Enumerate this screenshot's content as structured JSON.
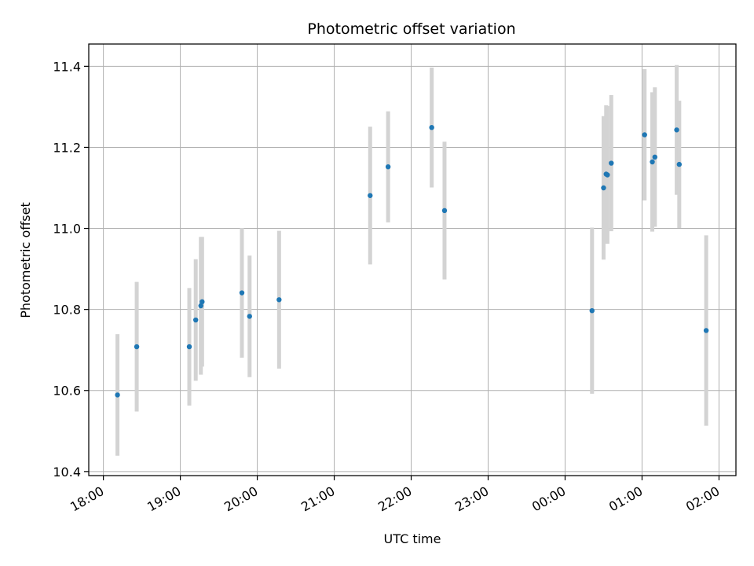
{
  "chart_data": {
    "type": "scatter",
    "title": "Photometric offset variation",
    "xlabel": "UTC time",
    "ylabel": "Photometric offset",
    "x_tick_labels": [
      "18:00",
      "19:00",
      "20:00",
      "21:00",
      "22:00",
      "23:00",
      "00:00",
      "01:00",
      "02:00"
    ],
    "x_tick_hours": [
      0,
      1,
      2,
      3,
      4,
      5,
      6,
      7,
      8
    ],
    "x_start_time": "18:00",
    "xlim_hours": [
      -0.19,
      8.22
    ],
    "y_ticks": [
      10.4,
      10.6,
      10.8,
      11.0,
      11.2,
      11.4
    ],
    "y_tick_labels": [
      "10.4",
      "10.6",
      "10.8",
      "11.0",
      "11.2",
      "11.4"
    ],
    "ylim": [
      10.39,
      11.455
    ],
    "grid": true,
    "point_color": "#1f77b4",
    "errorbar_color": "#d3d3d3",
    "points": [
      {
        "time": "18:11",
        "y": 10.589,
        "err": 0.15
      },
      {
        "time": "18:26",
        "y": 10.708,
        "err": 0.16
      },
      {
        "time": "19:07",
        "y": 10.708,
        "err": 0.145
      },
      {
        "time": "19:12",
        "y": 10.774,
        "err": 0.15
      },
      {
        "time": "19:16",
        "y": 10.809,
        "err": 0.17
      },
      {
        "time": "19:17",
        "y": 10.819,
        "err": 0.16
      },
      {
        "time": "19:48",
        "y": 10.841,
        "err": 0.16
      },
      {
        "time": "19:54",
        "y": 10.783,
        "err": 0.15
      },
      {
        "time": "20:17",
        "y": 10.824,
        "err": 0.17
      },
      {
        "time": "21:28",
        "y": 11.081,
        "err": 0.17
      },
      {
        "time": "21:42",
        "y": 11.152,
        "err": 0.137
      },
      {
        "time": "22:16",
        "y": 11.249,
        "err": 0.148
      },
      {
        "time": "22:26",
        "y": 11.044,
        "err": 0.17
      },
      {
        "time": "00:21",
        "y": 10.797,
        "err": 0.205
      },
      {
        "time": "00:30",
        "y": 11.1,
        "err": 0.177
      },
      {
        "time": "00:32",
        "y": 11.134,
        "err": 0.17
      },
      {
        "time": "00:33",
        "y": 11.132,
        "err": 0.17
      },
      {
        "time": "00:36",
        "y": 11.161,
        "err": 0.168
      },
      {
        "time": "01:02",
        "y": 11.231,
        "err": 0.162
      },
      {
        "time": "01:08",
        "y": 11.164,
        "err": 0.172
      },
      {
        "time": "01:10",
        "y": 11.176,
        "err": 0.172
      },
      {
        "time": "01:27",
        "y": 11.243,
        "err": 0.16
      },
      {
        "time": "01:29",
        "y": 11.158,
        "err": 0.157
      },
      {
        "time": "01:50",
        "y": 10.748,
        "err": 0.235
      }
    ]
  }
}
